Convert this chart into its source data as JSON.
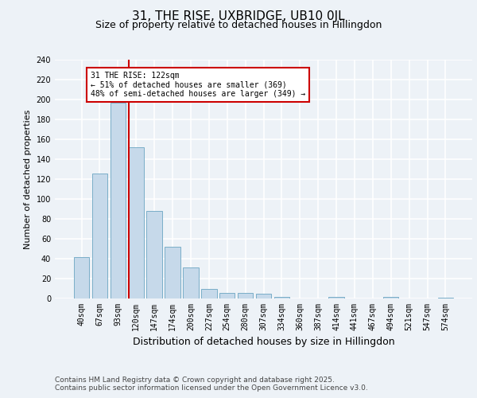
{
  "title_line1": "31, THE RISE, UXBRIDGE, UB10 0JL",
  "title_line2": "Size of property relative to detached houses in Hillingdon",
  "xlabel": "Distribution of detached houses by size in Hillingdon",
  "ylabel": "Number of detached properties",
  "categories": [
    "40sqm",
    "67sqm",
    "93sqm",
    "120sqm",
    "147sqm",
    "174sqm",
    "200sqm",
    "227sqm",
    "254sqm",
    "280sqm",
    "307sqm",
    "334sqm",
    "360sqm",
    "387sqm",
    "414sqm",
    "441sqm",
    "467sqm",
    "494sqm",
    "521sqm",
    "547sqm",
    "574sqm"
  ],
  "values": [
    42,
    126,
    197,
    152,
    88,
    52,
    31,
    10,
    6,
    6,
    5,
    2,
    0,
    0,
    2,
    0,
    0,
    2,
    0,
    0,
    1
  ],
  "bar_color": "#c6d9ea",
  "bar_edge_color": "#7aaec8",
  "annotation_text": "31 THE RISE: 122sqm\n← 51% of detached houses are smaller (369)\n48% of semi-detached houses are larger (349) →",
  "vline_color": "#cc0000",
  "annotation_box_edgecolor": "#cc0000",
  "bg_color": "#edf2f7",
  "grid_color": "#ffffff",
  "ylim": [
    0,
    240
  ],
  "yticks": [
    0,
    20,
    40,
    60,
    80,
    100,
    120,
    140,
    160,
    180,
    200,
    220,
    240
  ],
  "footer": "Contains HM Land Registry data © Crown copyright and database right 2025.\nContains public sector information licensed under the Open Government Licence v3.0.",
  "title_fontsize": 11,
  "subtitle_fontsize": 9,
  "xlabel_fontsize": 9,
  "ylabel_fontsize": 8,
  "tick_fontsize": 7,
  "footer_fontsize": 6.5
}
